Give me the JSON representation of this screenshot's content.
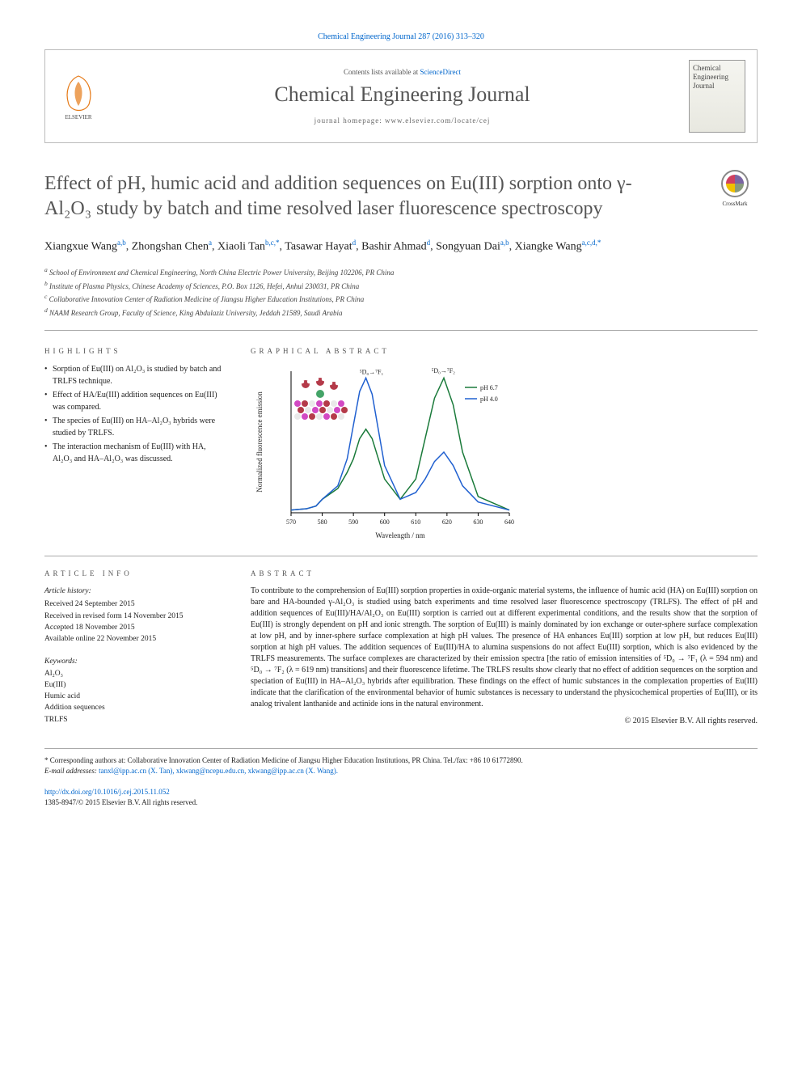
{
  "journal_ref": "Chemical Engineering Journal 287 (2016) 313–320",
  "header": {
    "contents_prefix": "Contents lists available at ",
    "contents_link": "ScienceDirect",
    "journal_name": "Chemical Engineering Journal",
    "homepage": "journal homepage: www.elsevier.com/locate/cej",
    "cover_text": "Chemical Engineering Journal"
  },
  "title": "Effect of pH, humic acid and addition sequences on Eu(III) sorption onto γ-Al₂O₃ study by batch and time resolved laser fluorescence spectroscopy",
  "crossmark_label": "CrossMark",
  "authors": [
    {
      "name": "Xiangxue Wang",
      "affs": "a,b"
    },
    {
      "name": "Zhongshan Chen",
      "affs": "a"
    },
    {
      "name": "Xiaoli Tan",
      "affs": "b,c,*"
    },
    {
      "name": "Tasawar Hayat",
      "affs": "d"
    },
    {
      "name": "Bashir Ahmad",
      "affs": "d"
    },
    {
      "name": "Songyuan Dai",
      "affs": "a,b"
    },
    {
      "name": "Xiangke Wang",
      "affs": "a,c,d,*"
    }
  ],
  "affiliations": [
    {
      "key": "a",
      "text": "School of Environment and Chemical Engineering, North China Electric Power University, Beijing 102206, PR China"
    },
    {
      "key": "b",
      "text": "Institute of Plasma Physics, Chinese Academy of Sciences, P.O. Box 1126, Hefei, Anhui 230031, PR China"
    },
    {
      "key": "c",
      "text": "Collaborative Innovation Center of Radiation Medicine of Jiangsu Higher Education Institutions, PR China"
    },
    {
      "key": "d",
      "text": "NAAM Research Group, Faculty of Science, King Abdulaziz University, Jeddah 21589, Saudi Arabia"
    }
  ],
  "labels": {
    "highlights": "HIGHLIGHTS",
    "graphical": "GRAPHICAL ABSTRACT",
    "article_info": "ARTICLE INFO",
    "abstract": "ABSTRACT"
  },
  "highlights": [
    "Sorption of Eu(III) on Al₂O₃ is studied by batch and TRLFS technique.",
    "Effect of HA/Eu(III) addition sequences on Eu(III) was compared.",
    "The species of Eu(III) on HA–Al₂O₃ hybrids were studied by TRLFS.",
    "The interaction mechanism of Eu(III) with HA, Al₂O₃ and HA–Al₂O₃ was discussed."
  ],
  "graphical_chart": {
    "type": "line",
    "xlabel": "Wavelength / nm",
    "ylabel": "Normalized fluorescence emission",
    "xlim": [
      570,
      640
    ],
    "xticks": [
      570,
      580,
      590,
      600,
      610,
      620,
      630,
      640
    ],
    "ylim": [
      0,
      1.05
    ],
    "peak1_label": "⁵D₀→⁷F₁",
    "peak2_label": "⁵D₀→⁷F₂",
    "legend": [
      "pH 6.7",
      "pH 4.0"
    ],
    "series": [
      {
        "name": "pH 6.7",
        "color": "#1a7a3a",
        "x": [
          570,
          575,
          578,
          580,
          585,
          588,
          590,
          592,
          594,
          596,
          600,
          605,
          610,
          613,
          616,
          619,
          622,
          625,
          630,
          640
        ],
        "y": [
          0.02,
          0.03,
          0.05,
          0.1,
          0.18,
          0.3,
          0.4,
          0.55,
          0.62,
          0.55,
          0.25,
          0.1,
          0.25,
          0.55,
          0.85,
          1.0,
          0.8,
          0.45,
          0.12,
          0.02
        ]
      },
      {
        "name": "pH 4.0",
        "color": "#2060d0",
        "x": [
          570,
          575,
          578,
          580,
          585,
          588,
          590,
          592,
          594,
          596,
          600,
          605,
          610,
          613,
          616,
          619,
          622,
          625,
          630,
          640
        ],
        "y": [
          0.02,
          0.03,
          0.05,
          0.1,
          0.2,
          0.4,
          0.65,
          0.9,
          1.0,
          0.88,
          0.35,
          0.1,
          0.15,
          0.25,
          0.38,
          0.45,
          0.35,
          0.2,
          0.08,
          0.02
        ]
      }
    ],
    "background_color": "#ffffff",
    "axis_color": "#000000",
    "inset_colors": {
      "atoms_top": [
        "#b03040",
        "#ffffff",
        "#3aa060"
      ],
      "lattice": [
        "#d040c0",
        "#b03040",
        "#e8e8e8"
      ]
    }
  },
  "article_history": {
    "label": "Article history:",
    "received": "Received 24 September 2015",
    "revised": "Received in revised form 14 November 2015",
    "accepted": "Accepted 18 November 2015",
    "online": "Available online 22 November 2015"
  },
  "keywords": {
    "label": "Keywords:",
    "items": [
      "Al₂O₃",
      "Eu(III)",
      "Humic acid",
      "Addition sequences",
      "TRLFS"
    ]
  },
  "abstract": "To contribute to the comprehension of Eu(III) sorption properties in oxide-organic material systems, the influence of humic acid (HA) on Eu(III) sorption on bare and HA-bounded γ-Al₂O₃ is studied using batch experiments and time resolved laser fluorescence spectroscopy (TRLFS). The effect of pH and addition sequences of Eu(III)/HA/Al₂O₃ on Eu(III) sorption is carried out at different experimental conditions, and the results show that the sorption of Eu(III) is strongly dependent on pH and ionic strength. The sorption of Eu(III) is mainly dominated by ion exchange or outer-sphere surface complexation at low pH, and by inner-sphere surface complexation at high pH values. The presence of HA enhances Eu(III) sorption at low pH, but reduces Eu(III) sorption at high pH values. The addition sequences of Eu(III)/HA to alumina suspensions do not affect Eu(III) sorption, which is also evidenced by the TRLFS measurements. The surface complexes are characterized by their emission spectra [the ratio of emission intensities of ⁵D₀ → ⁷F₁ (λ = 594 nm) and ⁵D₀ → ⁷F₂ (λ = 619 nm) transitions] and their fluorescence lifetime. The TRLFS results show clearly that no effect of addition sequences on the sorption and speciation of Eu(III) in HA–Al₂O₃ hybrids after equilibration. These findings on the effect of humic substances in the complexation properties of Eu(III) indicate that the clarification of the environmental behavior of humic substances is necessary to understand the physicochemical properties of Eu(III), or its analog trivalent lanthanide and actinide ions in the natural environment.",
  "copyright": "© 2015 Elsevier B.V. All rights reserved.",
  "footer": {
    "corresponding": "* Corresponding authors at: Collaborative Innovation Center of Radiation Medicine of Jiangsu Higher Education Institutions, PR China. Tel./fax: +86 10 61772890.",
    "email_label": "E-mail addresses:",
    "emails": "tanxl@ipp.ac.cn (X. Tan), xkwang@ncepu.edu.cn, xkwang@ipp.ac.cn (X. Wang).",
    "doi": "http://dx.doi.org/10.1016/j.cej.2015.11.052",
    "issn": "1385-8947/© 2015 Elsevier B.V. All rights reserved."
  }
}
